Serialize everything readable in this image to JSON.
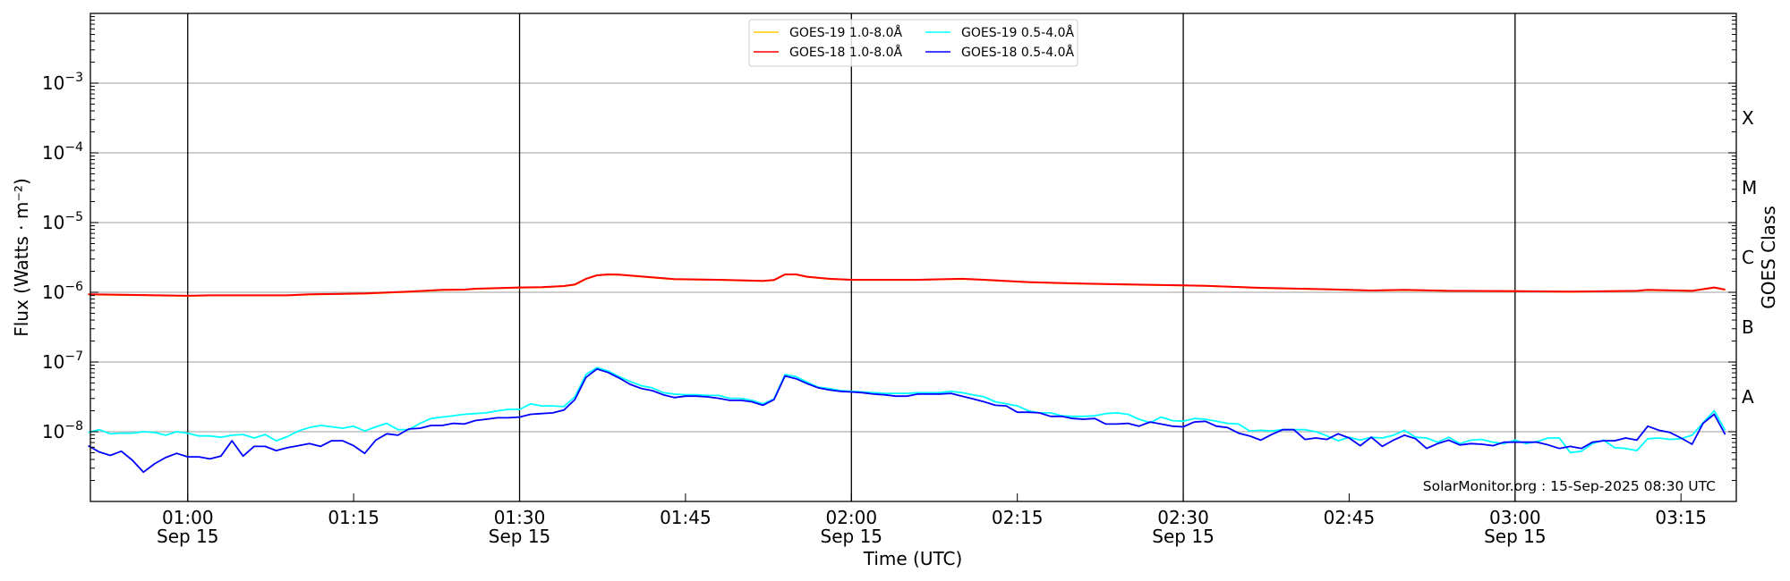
{
  "chart_data": {
    "type": "line",
    "title": "",
    "xlabel": "Time (UTC)",
    "ylabel": "Flux (Watts · m⁻²)",
    "y2label": "GOES Class",
    "yscale": "log",
    "ylim": [
      1e-09,
      0.01
    ],
    "xlim": [
      "00:51",
      "03:20"
    ],
    "grid": true,
    "legend_placement": "top-center",
    "y_ticks": [
      {
        "base": "10",
        "exp": "−8",
        "log10": -8
      },
      {
        "base": "10",
        "exp": "−7",
        "log10": -7
      },
      {
        "base": "10",
        "exp": "−6",
        "log10": -6
      },
      {
        "base": "10",
        "exp": "−5",
        "log10": -5
      },
      {
        "base": "10",
        "exp": "−4",
        "log10": -4
      },
      {
        "base": "10",
        "exp": "−3",
        "log10": -3
      }
    ],
    "goes_classes": [
      {
        "label": "A",
        "log10": -7.5
      },
      {
        "label": "B",
        "log10": -6.5
      },
      {
        "label": "C",
        "log10": -5.5
      },
      {
        "label": "M",
        "log10": -4.5
      },
      {
        "label": "X",
        "log10": -3.5
      }
    ],
    "x_ticks": [
      {
        "time": "01:00",
        "label": "01:00",
        "date": "Sep 15"
      },
      {
        "time": "01:15",
        "label": "01:15",
        "date": ""
      },
      {
        "time": "01:30",
        "label": "01:30",
        "date": "Sep 15"
      },
      {
        "time": "01:45",
        "label": "01:45",
        "date": ""
      },
      {
        "time": "02:00",
        "label": "02:00",
        "date": "Sep 15"
      },
      {
        "time": "02:15",
        "label": "02:15",
        "date": ""
      },
      {
        "time": "02:30",
        "label": "02:30",
        "date": "Sep 15"
      },
      {
        "time": "02:45",
        "label": "02:45",
        "date": ""
      },
      {
        "time": "03:00",
        "label": "03:00",
        "date": "Sep 15"
      },
      {
        "time": "03:15",
        "label": "03:15",
        "date": ""
      }
    ],
    "vertical_lines": [
      "01:00",
      "01:30",
      "02:00",
      "02:30",
      "03:00"
    ],
    "watermark": "SolarMonitor.org : 15-Sep-2025 08:30 UTC",
    "series": [
      {
        "name": "GOES-19 1.0-8.0Å",
        "color": "#ffc800",
        "times": [
          "00:51",
          "00:56",
          "01:00",
          "01:02",
          "01:09",
          "01:11",
          "01:16",
          "01:20",
          "01:23",
          "01:25",
          "01:26",
          "01:30",
          "01:32",
          "01:34",
          "01:35",
          "01:36",
          "01:37",
          "01:38",
          "01:39",
          "01:40",
          "01:41",
          "01:44",
          "01:48",
          "01:52",
          "01:53",
          "01:54",
          "01:55",
          "01:56",
          "01:58",
          "02:00",
          "02:06",
          "02:10",
          "02:12",
          "02:16",
          "02:20",
          "02:24",
          "02:30",
          "02:32",
          "02:37",
          "02:43",
          "02:47",
          "02:50",
          "02:54",
          "03:00",
          "03:05",
          "03:11",
          "03:12",
          "03:16",
          "03:18",
          "03:19"
        ],
        "log10_flux": [
          -6.032,
          -6.042,
          -6.052,
          -6.045,
          -6.045,
          -6.032,
          -6.019,
          -5.993,
          -5.968,
          -5.963,
          -5.951,
          -5.933,
          -5.929,
          -5.912,
          -5.891,
          -5.809,
          -5.758,
          -5.745,
          -5.749,
          -5.762,
          -5.775,
          -5.814,
          -5.822,
          -5.839,
          -5.826,
          -5.745,
          -5.745,
          -5.779,
          -5.809,
          -5.822,
          -5.822,
          -5.809,
          -5.822,
          -5.856,
          -5.874,
          -5.886,
          -5.903,
          -5.908,
          -5.938,
          -5.959,
          -5.976,
          -5.968,
          -5.981,
          -5.985,
          -5.993,
          -5.981,
          -5.968,
          -5.981,
          -5.933,
          -5.963
        ]
      },
      {
        "name": "GOES-18 1.0-8.0Å",
        "color": "#ff0000",
        "times": [
          "00:51",
          "00:56",
          "01:00",
          "01:02",
          "01:09",
          "01:11",
          "01:16",
          "01:20",
          "01:23",
          "01:25",
          "01:26",
          "01:30",
          "01:32",
          "01:34",
          "01:35",
          "01:36",
          "01:37",
          "01:38",
          "01:39",
          "01:40",
          "01:41",
          "01:44",
          "01:48",
          "01:52",
          "01:53",
          "01:54",
          "01:55",
          "01:56",
          "01:58",
          "02:00",
          "02:06",
          "02:10",
          "02:12",
          "02:16",
          "02:20",
          "02:24",
          "02:30",
          "02:32",
          "02:37",
          "02:43",
          "02:47",
          "02:50",
          "02:54",
          "03:00",
          "03:05",
          "03:11",
          "03:12",
          "03:16",
          "03:18",
          "03:19"
        ],
        "log10_flux": [
          -6.03,
          -6.04,
          -6.05,
          -6.043,
          -6.043,
          -6.03,
          -6.017,
          -5.991,
          -5.966,
          -5.961,
          -5.949,
          -5.931,
          -5.927,
          -5.91,
          -5.889,
          -5.807,
          -5.756,
          -5.743,
          -5.747,
          -5.76,
          -5.773,
          -5.812,
          -5.82,
          -5.837,
          -5.824,
          -5.743,
          -5.743,
          -5.777,
          -5.807,
          -5.82,
          -5.82,
          -5.807,
          -5.82,
          -5.854,
          -5.872,
          -5.884,
          -5.901,
          -5.906,
          -5.936,
          -5.957,
          -5.974,
          -5.966,
          -5.979,
          -5.983,
          -5.991,
          -5.979,
          -5.966,
          -5.979,
          -5.931,
          -5.961
        ]
      },
      {
        "name": "GOES-19 0.5-4.0Å",
        "color": "#00ffff",
        "start": "00:51",
        "step_minutes": 1,
        "log10_flux": [
          -8.01,
          -7.97,
          -8.03,
          -8.02,
          -8.02,
          -8.0,
          -8.01,
          -8.05,
          -8.0,
          -8.02,
          -8.06,
          -8.06,
          -8.08,
          -8.05,
          -8.04,
          -8.09,
          -8.04,
          -8.13,
          -8.07,
          -7.99,
          -7.94,
          -7.91,
          -7.93,
          -7.95,
          -7.92,
          -7.99,
          -7.93,
          -7.88,
          -7.97,
          -7.97,
          -7.88,
          -7.81,
          -7.79,
          -7.77,
          -7.75,
          -7.74,
          -7.73,
          -7.7,
          -7.68,
          -7.68,
          -7.6,
          -7.63,
          -7.63,
          -7.64,
          -7.5,
          -7.18,
          -7.08,
          -7.13,
          -7.21,
          -7.28,
          -7.34,
          -7.37,
          -7.44,
          -7.46,
          -7.47,
          -7.47,
          -7.48,
          -7.48,
          -7.52,
          -7.52,
          -7.55,
          -7.6,
          -7.53,
          -7.18,
          -7.21,
          -7.29,
          -7.36,
          -7.38,
          -7.41,
          -7.42,
          -7.43,
          -7.44,
          -7.45,
          -7.45,
          -7.45,
          -7.44,
          -7.44,
          -7.44,
          -7.42,
          -7.44,
          -7.47,
          -7.5,
          -7.57,
          -7.6,
          -7.63,
          -7.7,
          -7.73,
          -7.73,
          -7.77,
          -7.78,
          -7.78,
          -7.77,
          -7.74,
          -7.73,
          -7.75,
          -7.82,
          -7.87,
          -7.79,
          -7.84,
          -7.85,
          -7.81,
          -7.82,
          -7.85,
          -7.88,
          -7.89,
          -7.99,
          -7.98,
          -7.99,
          -7.97,
          -7.97,
          -7.97,
          -8.0,
          -8.06,
          -8.13,
          -8.08,
          -8.12,
          -8.08,
          -8.09,
          -8.05,
          -7.98,
          -8.08,
          -8.09,
          -8.15,
          -8.08,
          -8.17,
          -8.12,
          -8.11,
          -8.15,
          -8.17,
          -8.12,
          -8.17,
          -8.14,
          -8.09,
          -8.09,
          -8.3,
          -8.28,
          -8.17,
          -8.12,
          -8.23,
          -8.24,
          -8.27,
          -8.1,
          -8.09,
          -8.11,
          -8.1,
          -8.05,
          -7.87,
          -7.7,
          -7.98
        ]
      },
      {
        "name": "GOES-18 0.5-4.0Å",
        "color": "#0000ff",
        "start": "00:51",
        "step_minutes": 1,
        "log10_flux": [
          -8.2,
          -8.29,
          -8.34,
          -8.28,
          -8.41,
          -8.58,
          -8.46,
          -8.37,
          -8.31,
          -8.36,
          -8.36,
          -8.39,
          -8.35,
          -8.13,
          -8.35,
          -8.21,
          -8.21,
          -8.27,
          -8.23,
          -8.2,
          -8.17,
          -8.21,
          -8.13,
          -8.13,
          -8.2,
          -8.31,
          -8.12,
          -8.03,
          -8.05,
          -7.96,
          -7.95,
          -7.91,
          -7.91,
          -7.88,
          -7.89,
          -7.84,
          -7.82,
          -7.8,
          -7.8,
          -7.79,
          -7.75,
          -7.74,
          -7.73,
          -7.69,
          -7.54,
          -7.22,
          -7.1,
          -7.15,
          -7.23,
          -7.32,
          -7.38,
          -7.41,
          -7.47,
          -7.51,
          -7.49,
          -7.49,
          -7.5,
          -7.52,
          -7.55,
          -7.55,
          -7.57,
          -7.62,
          -7.54,
          -7.2,
          -7.24,
          -7.31,
          -7.37,
          -7.4,
          -7.42,
          -7.43,
          -7.44,
          -7.46,
          -7.47,
          -7.49,
          -7.49,
          -7.46,
          -7.46,
          -7.46,
          -7.45,
          -7.49,
          -7.53,
          -7.57,
          -7.62,
          -7.63,
          -7.72,
          -7.72,
          -7.73,
          -7.78,
          -7.78,
          -7.81,
          -7.82,
          -7.81,
          -7.89,
          -7.89,
          -7.88,
          -7.92,
          -7.86,
          -7.89,
          -7.92,
          -7.93,
          -7.86,
          -7.85,
          -7.92,
          -7.94,
          -8.02,
          -8.06,
          -8.12,
          -8.04,
          -7.97,
          -7.97,
          -8.11,
          -8.09,
          -8.11,
          -8.03,
          -8.09,
          -8.2,
          -8.08,
          -8.21,
          -8.12,
          -8.05,
          -8.1,
          -8.24,
          -8.17,
          -8.12,
          -8.19,
          -8.17,
          -8.18,
          -8.2,
          -8.15,
          -8.15,
          -8.15,
          -8.15,
          -8.19,
          -8.24,
          -8.21,
          -8.24,
          -8.15,
          -8.13,
          -8.13,
          -8.09,
          -8.12,
          -7.92,
          -7.98,
          -8.01,
          -8.09,
          -8.18,
          -7.88,
          -7.75,
          -8.04
        ]
      }
    ]
  }
}
